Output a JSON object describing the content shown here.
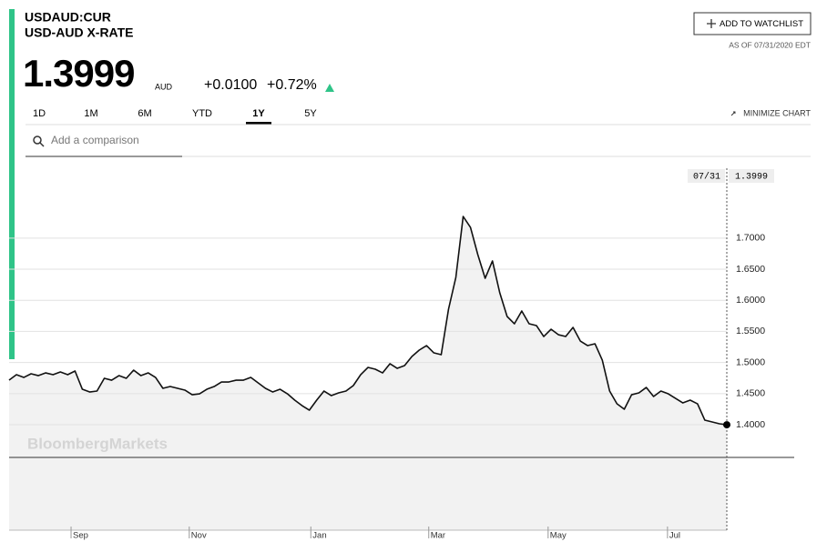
{
  "header": {
    "ticker": "USDAUD:CUR",
    "name": "USD-AUD X-RATE",
    "price": "1.3999",
    "currency": "AUD",
    "change": "+0.0100",
    "change_pct": "+0.72%",
    "watchlist_button": "ADD TO WATCHLIST",
    "as_of": "AS OF 07/31/2020 EDT"
  },
  "tabs": [
    "1D",
    "1M",
    "6M",
    "YTD",
    "1Y",
    "5Y"
  ],
  "active_tab_index": 4,
  "minimize": "MINIMIZE CHART",
  "comparison_placeholder": "Add a comparison",
  "chart_data": {
    "type": "line",
    "color": "#111111",
    "area_color": "#f2f2f2",
    "grid": true,
    "watermark": "BloombergMarkets",
    "last_date": "07/31",
    "values": [
      1.4716,
      1.4804,
      1.476,
      1.4819,
      1.4789,
      1.4833,
      1.4804,
      1.4848,
      1.4804,
      1.4863,
      1.457,
      1.4526,
      1.4541,
      1.4746,
      1.4716,
      1.4789,
      1.4746,
      1.4877,
      1.4789,
      1.4833,
      1.476,
      1.4585,
      1.4614,
      1.4585,
      1.4556,
      1.4482,
      1.4497,
      1.457,
      1.4614,
      1.4687,
      1.4687,
      1.4716,
      1.4716,
      1.476,
      1.4673,
      1.4585,
      1.4526,
      1.457,
      1.4497,
      1.4395,
      1.4307,
      1.4234,
      1.4395,
      1.4541,
      1.4468,
      1.4512,
      1.4541,
      1.4629,
      1.4804,
      1.4921,
      1.4892,
      1.4833,
      1.498,
      1.4906,
      1.495,
      1.5097,
      1.5199,
      1.5272,
      1.5155,
      1.5126,
      1.5857,
      1.6368,
      1.7348,
      1.7172,
      1.6734,
      1.6354,
      1.6632,
      1.612,
      1.574,
      1.5623,
      1.5828,
      1.5623,
      1.5594,
      1.5418,
      1.5535,
      1.5447,
      1.5418,
      1.5564,
      1.5345,
      1.5272,
      1.5301,
      1.5038,
      1.4541,
      1.4336,
      1.4249,
      1.4482,
      1.4512,
      1.4599,
      1.4453,
      1.4541,
      1.4497,
      1.4424,
      1.4351,
      1.4395,
      1.4336,
      1.4073,
      1.4044,
      1.4015,
      1.3999
    ],
    "xlim": [
      0,
      98
    ],
    "xticks": [
      {
        "value": 8.46,
        "label": "Sep"
      },
      {
        "value": 24.6,
        "label": "Nov"
      },
      {
        "value": 41.2,
        "label": "Jan"
      },
      {
        "value": 57.3,
        "label": "Mar"
      },
      {
        "value": 73.6,
        "label": "May"
      },
      {
        "value": 89.9,
        "label": "Jul"
      }
    ],
    "ylim": [
      1.3474,
      1.8123
    ],
    "yticks": [
      {
        "value": 1.4,
        "label": "1.4000"
      },
      {
        "value": 1.45,
        "label": "1.4500"
      },
      {
        "value": 1.5,
        "label": "1.5000"
      },
      {
        "value": 1.55,
        "label": "1.5500"
      },
      {
        "value": 1.6,
        "label": "1.6000"
      },
      {
        "value": 1.65,
        "label": "1.6500"
      },
      {
        "value": 1.7,
        "label": "1.7000"
      }
    ]
  }
}
